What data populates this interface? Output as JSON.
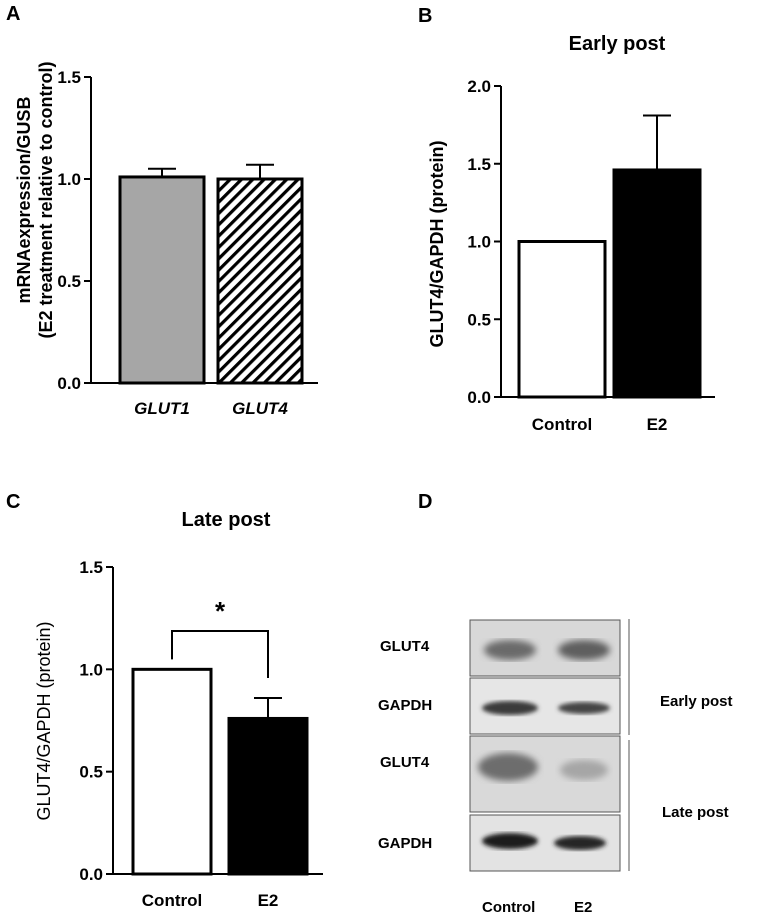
{
  "panels": {
    "A": "A",
    "B": "B",
    "C": "C",
    "D": "D"
  },
  "chart_data": [
    {
      "id": "A",
      "type": "bar",
      "title": "",
      "ylabel_line1": "mRNAexpression/GUSB",
      "ylabel_line2": "(E2 treatment relative to control)",
      "categories": [
        "GLUT1",
        "GLUT4"
      ],
      "values": [
        1.01,
        1.0
      ],
      "errors": [
        0.04,
        0.07
      ],
      "fills": [
        "#a6a6a6",
        "hatch"
      ],
      "ylim": [
        0,
        1.5
      ],
      "yticks": [
        "0.0",
        "0.5",
        "1.0",
        "1.5"
      ]
    },
    {
      "id": "B",
      "type": "bar",
      "title": "Early post",
      "ylabel": "GLUT4/GAPDH (protein)",
      "categories": [
        "Control",
        "E2"
      ],
      "values": [
        1.0,
        1.46
      ],
      "errors": [
        0,
        0.35
      ],
      "fills": [
        "#ffffff",
        "#000000"
      ],
      "ylim": [
        0,
        2.0
      ],
      "yticks": [
        "0.0",
        "0.5",
        "1.0",
        "1.5",
        "2.0"
      ]
    },
    {
      "id": "C",
      "type": "bar",
      "title": "Late post",
      "ylabel": "GLUT4/GAPDH (protein)",
      "categories": [
        "Control",
        "E2"
      ],
      "values": [
        1.0,
        0.76
      ],
      "errors": [
        0,
        0.1
      ],
      "fills": [
        "#ffffff",
        "#000000"
      ],
      "ylim": [
        0,
        1.5
      ],
      "yticks": [
        "0.0",
        "0.5",
        "1.0",
        "1.5"
      ],
      "significance": "*"
    }
  ],
  "blot": {
    "rows": [
      "GLUT4",
      "GAPDH",
      "GLUT4",
      "GAPDH"
    ],
    "groups": [
      "Early post",
      "Late post"
    ],
    "lanes": [
      "Control",
      "E2"
    ]
  }
}
